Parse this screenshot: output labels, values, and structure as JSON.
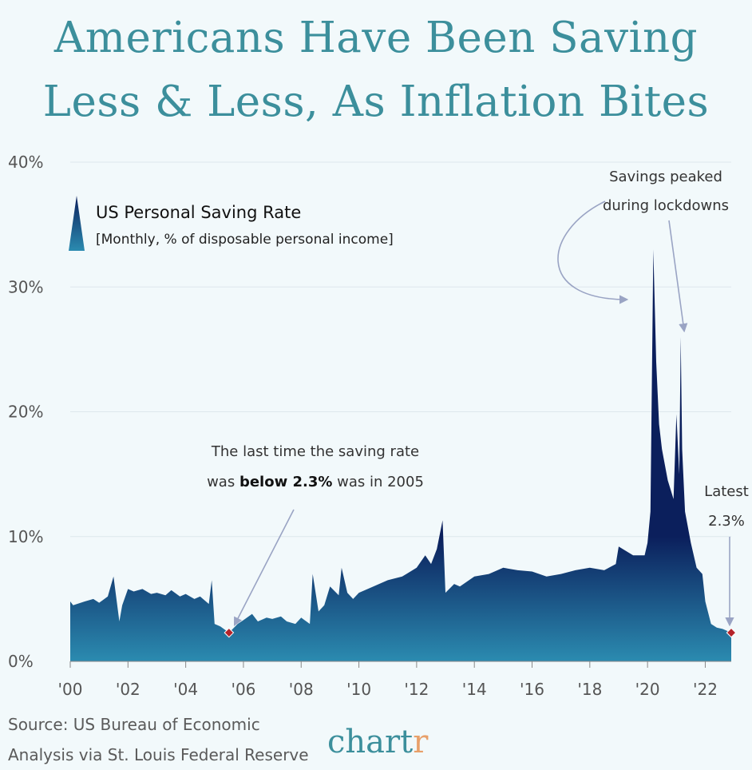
{
  "title_lines": [
    "Americans Have Been Saving",
    "Less & Less, As Inflation Bites"
  ],
  "legend": {
    "series_name": "US Personal Saving Rate",
    "subtitle": "[Monthly, % of disposable personal income]"
  },
  "annotations": {
    "peak_line1": "Savings peaked",
    "peak_line2": "during lockdowns",
    "last_line1": "The last time the saving rate",
    "last_line2_a": "was ",
    "last_line2_b": "below 2.3%",
    "last_line2_c": " was in 2005",
    "latest_label": "Latest",
    "latest_value": "2.3%"
  },
  "footer": {
    "source_line1": "Source: US Bureau of Economic",
    "source_line2": "Analysis via St. Louis Federal Reserve",
    "brand_a": "chart",
    "brand_b": "r"
  },
  "colors": {
    "title": "#3c8f9c",
    "area_top": "#0b1f5c",
    "area_bottom": "#2b8bb0",
    "marker": "#b5232a",
    "arrow": "#9aa4c4"
  },
  "chart_data": {
    "type": "area",
    "ylim": [
      0,
      40
    ],
    "yticks": [
      "0%",
      "10%",
      "20%",
      "30%",
      "40%"
    ],
    "ytick_values": [
      0,
      10,
      20,
      30,
      40
    ],
    "xlim": [
      2000,
      2022.9
    ],
    "xticks": [
      "'00",
      "'02",
      "'04",
      "'06",
      "'08",
      "'10",
      "'12",
      "'14",
      "'16",
      "'18",
      "'20",
      "'22"
    ],
    "xtick_values": [
      2000,
      2002,
      2004,
      2006,
      2008,
      2010,
      2012,
      2014,
      2016,
      2018,
      2020,
      2022
    ],
    "x": [
      2000.0,
      2000.1,
      2000.5,
      2000.8,
      2001.0,
      2001.3,
      2001.5,
      2001.7,
      2001.8,
      2002.0,
      2002.2,
      2002.5,
      2002.8,
      2003.0,
      2003.3,
      2003.5,
      2003.8,
      2004.0,
      2004.3,
      2004.5,
      2004.8,
      2004.9,
      2005.0,
      2005.2,
      2005.5,
      2005.8,
      2006.0,
      2006.3,
      2006.5,
      2006.8,
      2007.0,
      2007.3,
      2007.5,
      2007.8,
      2008.0,
      2008.3,
      2008.4,
      2008.6,
      2008.8,
      2009.0,
      2009.3,
      2009.4,
      2009.6,
      2009.8,
      2010.0,
      2010.5,
      2011.0,
      2011.5,
      2012.0,
      2012.3,
      2012.5,
      2012.7,
      2012.9,
      2013.0,
      2013.3,
      2013.5,
      2014.0,
      2014.5,
      2015.0,
      2015.5,
      2016.0,
      2016.5,
      2017.0,
      2017.5,
      2018.0,
      2018.5,
      2018.9,
      2019.0,
      2019.5,
      2019.9,
      2020.0,
      2020.1,
      2020.2,
      2020.3,
      2020.4,
      2020.5,
      2020.7,
      2020.9,
      2021.0,
      2021.1,
      2021.15,
      2021.2,
      2021.3,
      2021.5,
      2021.7,
      2021.9,
      2022.0,
      2022.2,
      2022.4,
      2022.6,
      2022.8,
      2022.9
    ],
    "y": [
      4.8,
      4.5,
      4.8,
      5.0,
      4.7,
      5.2,
      6.8,
      3.2,
      4.5,
      5.8,
      5.6,
      5.8,
      5.4,
      5.5,
      5.3,
      5.7,
      5.2,
      5.4,
      5.0,
      5.2,
      4.6,
      6.5,
      3.0,
      2.8,
      2.3,
      3.0,
      3.3,
      3.8,
      3.2,
      3.5,
      3.4,
      3.6,
      3.2,
      3.0,
      3.5,
      3.0,
      7.0,
      4.0,
      4.5,
      6.0,
      5.3,
      7.5,
      5.5,
      5.0,
      5.5,
      6.0,
      6.5,
      6.8,
      7.5,
      8.5,
      7.8,
      9.0,
      11.3,
      5.5,
      6.2,
      6.0,
      6.8,
      7.0,
      7.5,
      7.3,
      7.2,
      6.8,
      7.0,
      7.3,
      7.5,
      7.3,
      7.8,
      9.2,
      8.5,
      8.5,
      9.5,
      12.0,
      33.0,
      24.0,
      19.0,
      17.0,
      14.5,
      13.0,
      19.8,
      15.0,
      26.0,
      17.0,
      12.0,
      9.5,
      7.5,
      7.0,
      4.8,
      3.0,
      2.7,
      2.6,
      2.4,
      2.3
    ]
  }
}
